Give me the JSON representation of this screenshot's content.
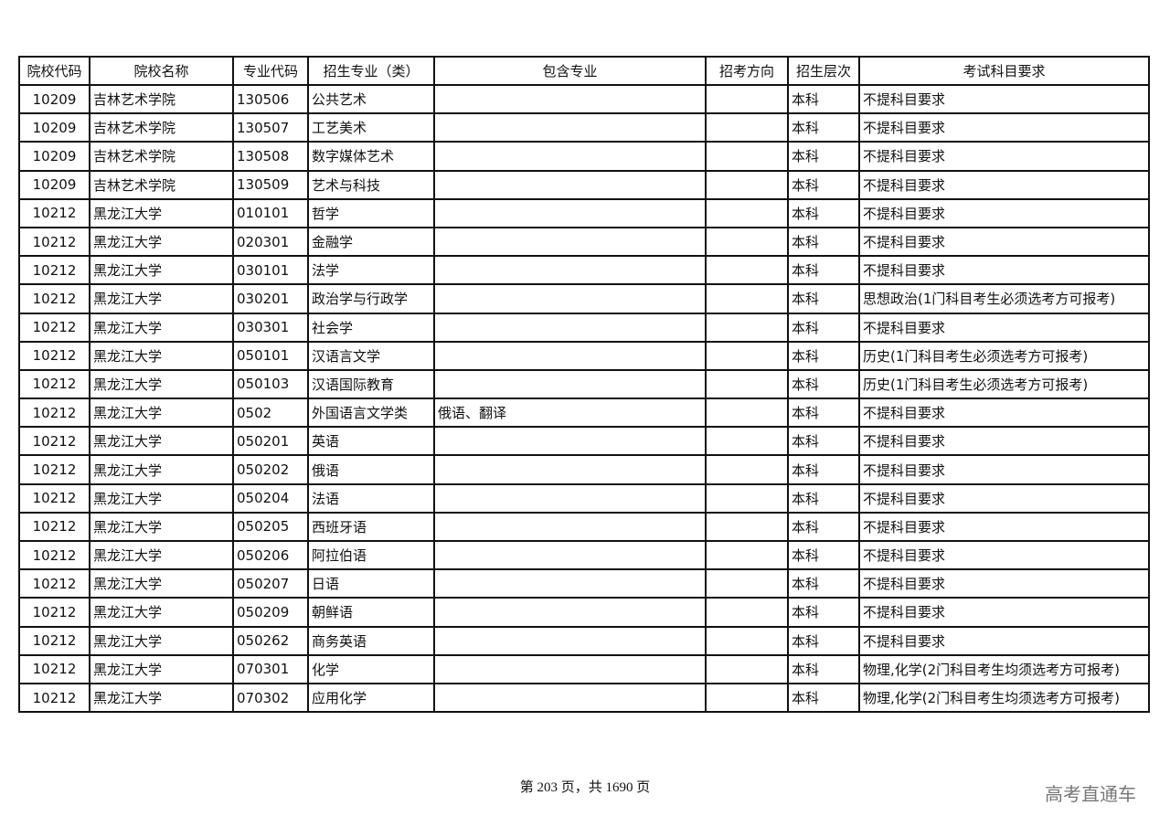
{
  "headers": [
    "院校代码",
    "院校名称",
    "专业代码",
    "招生专业（类）",
    "包含专业",
    "招考方向",
    "招生层次",
    "考试科目要求"
  ],
  "rows": [
    [
      "10209",
      "吉林艺术学院",
      "130506",
      "公共艺术",
      "",
      "",
      "本科",
      "不提科目要求"
    ],
    [
      "10209",
      "吉林艺术学院",
      "130507",
      "工艺美术",
      "",
      "",
      "本科",
      "不提科目要求"
    ],
    [
      "10209",
      "吉林艺术学院",
      "130508",
      "数字媒体艺术",
      "",
      "",
      "本科",
      "不提科目要求"
    ],
    [
      "10209",
      "吉林艺术学院",
      "130509",
      "艺术与科技",
      "",
      "",
      "本科",
      "不提科目要求"
    ],
    [
      "10212",
      "黑龙江大学",
      "010101",
      "哲学",
      "",
      "",
      "本科",
      "不提科目要求"
    ],
    [
      "10212",
      "黑龙江大学",
      "020301",
      "金融学",
      "",
      "",
      "本科",
      "不提科目要求"
    ],
    [
      "10212",
      "黑龙江大学",
      "030101",
      "法学",
      "",
      "",
      "本科",
      "不提科目要求"
    ],
    [
      "10212",
      "黑龙江大学",
      "030201",
      "政治学与行政学",
      "",
      "",
      "本科",
      "思想政治(1门科目考生必须选考方可报考)"
    ],
    [
      "10212",
      "黑龙江大学",
      "030301",
      "社会学",
      "",
      "",
      "本科",
      "不提科目要求"
    ],
    [
      "10212",
      "黑龙江大学",
      "050101",
      "汉语言文学",
      "",
      "",
      "本科",
      "历史(1门科目考生必须选考方可报考)"
    ],
    [
      "10212",
      "黑龙江大学",
      "050103",
      "汉语国际教育",
      "",
      "",
      "本科",
      "历史(1门科目考生必须选考方可报考)"
    ],
    [
      "10212",
      "黑龙江大学",
      "0502",
      "外国语言文学类",
      "俄语、翻译",
      "",
      "本科",
      "不提科目要求"
    ],
    [
      "10212",
      "黑龙江大学",
      "050201",
      "英语",
      "",
      "",
      "本科",
      "不提科目要求"
    ],
    [
      "10212",
      "黑龙江大学",
      "050202",
      "俄语",
      "",
      "",
      "本科",
      "不提科目要求"
    ],
    [
      "10212",
      "黑龙江大学",
      "050204",
      "法语",
      "",
      "",
      "本科",
      "不提科目要求"
    ],
    [
      "10212",
      "黑龙江大学",
      "050205",
      "西班牙语",
      "",
      "",
      "本科",
      "不提科目要求"
    ],
    [
      "10212",
      "黑龙江大学",
      "050206",
      "阿拉伯语",
      "",
      "",
      "本科",
      "不提科目要求"
    ],
    [
      "10212",
      "黑龙江大学",
      "050207",
      "日语",
      "",
      "",
      "本科",
      "不提科目要求"
    ],
    [
      "10212",
      "黑龙江大学",
      "050209",
      "朝鲜语",
      "",
      "",
      "本科",
      "不提科目要求"
    ],
    [
      "10212",
      "黑龙江大学",
      "050262",
      "商务英语",
      "",
      "",
      "本科",
      "不提科目要求"
    ],
    [
      "10212",
      "黑龙江大学",
      "070301",
      "化学",
      "",
      "",
      "本科",
      "物理,化学(2门科目考生均须选考方可报考)"
    ],
    [
      "10212",
      "黑龙江大学",
      "070302",
      "应用化学",
      "",
      "",
      "本科",
      "物理,化学(2门科目考生均须选考方可报考)"
    ]
  ],
  "footer": {
    "page_text": "第 203 页，共 1690 页"
  },
  "watermark": "高考直通车"
}
